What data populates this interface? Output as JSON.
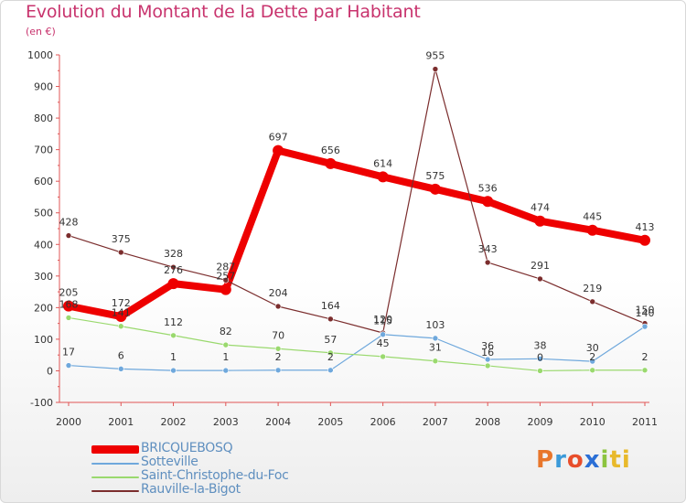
{
  "title": "Evolution du Montant de la Dette par Habitant",
  "subtitle": "(en €)",
  "logo_text": "Proxiti",
  "chart_data": {
    "type": "line",
    "categories": [
      "2000",
      "2001",
      "2002",
      "2003",
      "2004",
      "2005",
      "2006",
      "2007",
      "2008",
      "2009",
      "2010",
      "2011"
    ],
    "ylim": [
      -100,
      1000
    ],
    "yticks": [
      "-100",
      "0",
      "100",
      "200",
      "300",
      "400",
      "500",
      "600",
      "700",
      "800",
      "900",
      "1000"
    ],
    "grid": false,
    "legend_position": "bottom-left",
    "series": [
      {
        "name": "BRICQUEBOSQ",
        "color": "#ee0000",
        "values": [
          205,
          172,
          276,
          257,
          697,
          656,
          614,
          575,
          536,
          474,
          445,
          413
        ],
        "labels": [
          "205",
          "172",
          "276",
          "257",
          "697",
          "656",
          "614",
          "575",
          "536",
          "474",
          "445",
          "413"
        ]
      },
      {
        "name": "Sotteville",
        "color": "#6fa8dc",
        "values": [
          17,
          6,
          1,
          1,
          2,
          2,
          115,
          103,
          36,
          38,
          30,
          140
        ],
        "labels": [
          "17",
          "6",
          "1",
          "1",
          "2",
          "2",
          "115",
          "103",
          "36",
          "38",
          "30",
          "140"
        ]
      },
      {
        "name": "Saint-Christophe-du-Foc",
        "color": "#9ad96e",
        "values": [
          168,
          141,
          112,
          82,
          70,
          57,
          45,
          31,
          16,
          0,
          2,
          2
        ],
        "labels": [
          "168",
          "141",
          "112",
          "82",
          "70",
          "57",
          "45",
          "31",
          "16",
          "0",
          "2",
          "2"
        ]
      },
      {
        "name": "Rauville-la-Bigot",
        "color": "#7b2d2d",
        "values": [
          428,
          375,
          328,
          287,
          204,
          164,
          120,
          955,
          343,
          291,
          219,
          150
        ],
        "labels": [
          "428",
          "375",
          "328",
          "287",
          "204",
          "164",
          "120",
          "955",
          "343",
          "291",
          "219",
          "150"
        ]
      }
    ]
  }
}
